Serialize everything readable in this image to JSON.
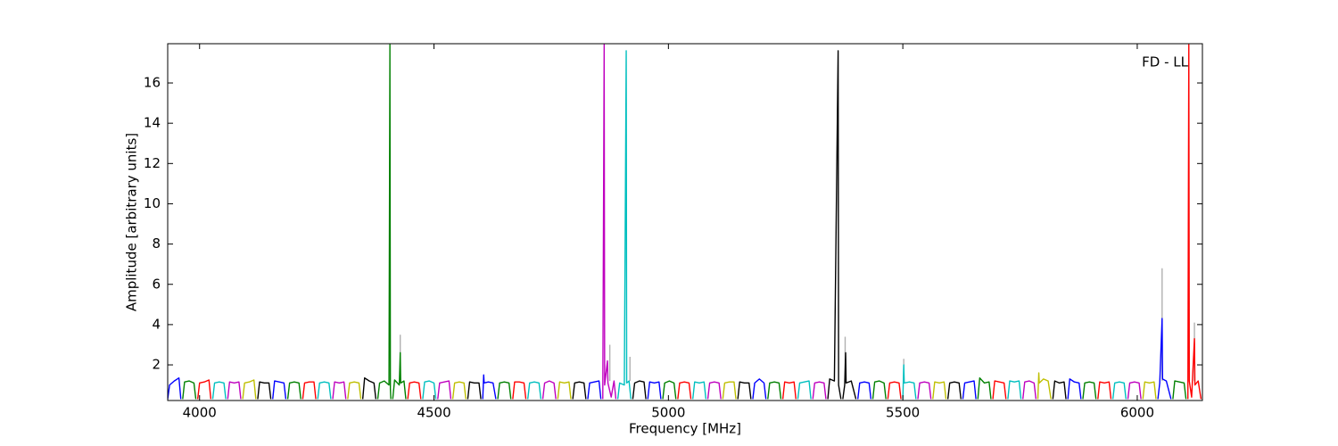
{
  "chart_data": {
    "type": "line",
    "annotation": "FD - LL",
    "xlabel": "Frequency [MHz]",
    "ylabel": "Amplitude [arbitrary units]",
    "xlim": [
      3932,
      6139
    ],
    "ylim": [
      0.23,
      17.95
    ],
    "xticks": [
      4000,
      4500,
      5000,
      5500,
      6000
    ],
    "yticks": [
      2,
      4,
      6,
      8,
      10,
      12,
      14,
      16
    ],
    "series": [
      {
        "color": "#0000ff",
        "x": [
          3932,
          3936,
          3946,
          3956,
          3960
        ],
        "values": [
          0.3,
          1.0,
          1.2,
          1.35,
          0.3
        ]
      },
      {
        "color": "#008000",
        "x": [
          3964,
          3968,
          3978,
          3988,
          3992
        ],
        "values": [
          0.3,
          1.15,
          1.2,
          1.1,
          0.3
        ]
      },
      {
        "color": "#ff0000",
        "x": [
          3996,
          4000,
          4010,
          4020,
          4024
        ],
        "values": [
          0.3,
          1.1,
          1.15,
          1.25,
          0.3
        ]
      },
      {
        "color": "#00bfbf",
        "x": [
          4028,
          4032,
          4042,
          4052,
          4056
        ],
        "values": [
          0.3,
          1.1,
          1.15,
          1.1,
          0.3
        ]
      },
      {
        "color": "#bf00bf",
        "x": [
          4060,
          4064,
          4074,
          4084,
          4088
        ],
        "values": [
          0.3,
          1.15,
          1.1,
          1.15,
          0.3
        ]
      },
      {
        "color": "#bfbf00",
        "x": [
          4092,
          4096,
          4106,
          4116,
          4120
        ],
        "values": [
          0.3,
          1.1,
          1.15,
          1.25,
          0.3
        ]
      },
      {
        "color": "#000000",
        "x": [
          4124,
          4128,
          4138,
          4148,
          4152
        ],
        "values": [
          0.3,
          1.15,
          1.1,
          1.1,
          0.3
        ]
      },
      {
        "color": "#0000ff",
        "x": [
          4156,
          4160,
          4170,
          4180,
          4184
        ],
        "values": [
          0.3,
          1.2,
          1.15,
          1.1,
          0.3
        ]
      },
      {
        "color": "#008000",
        "x": [
          4188,
          4192,
          4202,
          4212,
          4216
        ],
        "values": [
          0.3,
          1.1,
          1.15,
          1.1,
          0.3
        ]
      },
      {
        "color": "#ff0000",
        "x": [
          4220,
          4224,
          4234,
          4244,
          4248
        ],
        "values": [
          0.3,
          1.1,
          1.15,
          1.15,
          0.3
        ]
      },
      {
        "color": "#00bfbf",
        "x": [
          4252,
          4256,
          4266,
          4276,
          4280
        ],
        "values": [
          0.3,
          1.1,
          1.15,
          1.1,
          0.3
        ]
      },
      {
        "color": "#bf00bf",
        "x": [
          4284,
          4288,
          4298,
          4308,
          4312
        ],
        "values": [
          0.3,
          1.15,
          1.1,
          1.15,
          0.3
        ]
      },
      {
        "color": "#bfbf00",
        "x": [
          4316,
          4320,
          4330,
          4340,
          4344
        ],
        "values": [
          0.3,
          1.1,
          1.15,
          1.1,
          0.3
        ]
      },
      {
        "color": "#000000",
        "x": [
          4348,
          4352,
          4362,
          4372,
          4376
        ],
        "values": [
          0.3,
          1.35,
          1.2,
          1.1,
          0.3
        ]
      },
      {
        "color": "#008000",
        "x": [
          4380,
          4384,
          4394,
          4404,
          4406,
          4407,
          4408
        ],
        "values": [
          0.3,
          1.1,
          1.2,
          1.0,
          17.9,
          0.8,
          0.3
        ]
      },
      {
        "color": "#008000",
        "x": [
          4412,
          4416,
          4426,
          4428,
          4429,
          4436,
          4440
        ],
        "values": [
          0.3,
          1.25,
          1.0,
          2.6,
          1.1,
          1.2,
          0.3
        ]
      },
      {
        "color": "#ff0000",
        "x": [
          4444,
          4448,
          4458,
          4468,
          4472
        ],
        "values": [
          0.3,
          1.1,
          1.15,
          1.1,
          0.3
        ]
      },
      {
        "color": "#00bfbf",
        "x": [
          4476,
          4480,
          4490,
          4500,
          4504
        ],
        "values": [
          0.3,
          1.15,
          1.2,
          1.1,
          0.3
        ]
      },
      {
        "color": "#bf00bf",
        "x": [
          4508,
          4512,
          4522,
          4532,
          4536
        ],
        "values": [
          0.3,
          1.1,
          1.15,
          1.2,
          0.3
        ]
      },
      {
        "color": "#bfbf00",
        "x": [
          4540,
          4544,
          4554,
          4564,
          4568
        ],
        "values": [
          0.3,
          1.1,
          1.15,
          1.1,
          0.3
        ]
      },
      {
        "color": "#000000",
        "x": [
          4572,
          4576,
          4586,
          4596,
          4600
        ],
        "values": [
          0.3,
          1.15,
          1.1,
          1.1,
          0.3
        ]
      },
      {
        "color": "#0000ff",
        "x": [
          4604,
          4606,
          4607,
          4616,
          4626,
          4632
        ],
        "values": [
          0.3,
          1.5,
          1.1,
          1.15,
          1.1,
          0.3
        ]
      },
      {
        "color": "#008000",
        "x": [
          4636,
          4640,
          4650,
          4660,
          4664
        ],
        "values": [
          0.3,
          1.1,
          1.15,
          1.1,
          0.3
        ]
      },
      {
        "color": "#ff0000",
        "x": [
          4668,
          4672,
          4682,
          4692,
          4696
        ],
        "values": [
          0.3,
          1.15,
          1.15,
          1.1,
          0.3
        ]
      },
      {
        "color": "#00bfbf",
        "x": [
          4700,
          4704,
          4714,
          4724,
          4728
        ],
        "values": [
          0.3,
          1.1,
          1.15,
          1.1,
          0.3
        ]
      },
      {
        "color": "#bf00bf",
        "x": [
          4732,
          4736,
          4746,
          4756,
          4760
        ],
        "values": [
          0.3,
          1.1,
          1.2,
          1.1,
          0.3
        ]
      },
      {
        "color": "#bfbf00",
        "x": [
          4764,
          4768,
          4778,
          4788,
          4792
        ],
        "values": [
          0.3,
          1.15,
          1.1,
          1.15,
          0.3
        ]
      },
      {
        "color": "#000000",
        "x": [
          4796,
          4800,
          4810,
          4820,
          4824
        ],
        "values": [
          0.3,
          1.1,
          1.15,
          1.1,
          0.3
        ]
      },
      {
        "color": "#0000ff",
        "x": [
          4828,
          4832,
          4842,
          4852,
          4856
        ],
        "values": [
          0.3,
          1.1,
          1.15,
          1.2,
          0.3
        ]
      },
      {
        "color": "#bf00bf",
        "x": [
          4860,
          4863,
          4864,
          4870,
          4871,
          4878,
          4884,
          4888
        ],
        "values": [
          0.3,
          17.9,
          1.0,
          2.2,
          1.1,
          0.4,
          1.2,
          0.3
        ]
      },
      {
        "color": "#00bfbf",
        "x": [
          4892,
          4896,
          4906,
          4910,
          4911,
          4916,
          4920
        ],
        "values": [
          0.3,
          1.1,
          1.0,
          17.6,
          1.1,
          1.2,
          0.3
        ]
      },
      {
        "color": "#000000",
        "x": [
          4924,
          4928,
          4938,
          4948,
          4952
        ],
        "values": [
          0.3,
          1.1,
          1.2,
          1.15,
          0.3
        ]
      },
      {
        "color": "#0000ff",
        "x": [
          4956,
          4960,
          4970,
          4980,
          4984
        ],
        "values": [
          0.3,
          1.15,
          1.1,
          1.15,
          0.3
        ]
      },
      {
        "color": "#008000",
        "x": [
          4988,
          4992,
          5002,
          5012,
          5016
        ],
        "values": [
          0.3,
          1.1,
          1.2,
          1.1,
          0.3
        ]
      },
      {
        "color": "#ff0000",
        "x": [
          5020,
          5024,
          5034,
          5044,
          5048
        ],
        "values": [
          0.3,
          1.1,
          1.15,
          1.1,
          0.3
        ]
      },
      {
        "color": "#00bfbf",
        "x": [
          5052,
          5056,
          5066,
          5076,
          5080
        ],
        "values": [
          0.3,
          1.15,
          1.1,
          1.15,
          0.3
        ]
      },
      {
        "color": "#bf00bf",
        "x": [
          5084,
          5088,
          5098,
          5108,
          5112
        ],
        "values": [
          0.3,
          1.1,
          1.15,
          1.1,
          0.3
        ]
      },
      {
        "color": "#bfbf00",
        "x": [
          5116,
          5120,
          5130,
          5140,
          5144
        ],
        "values": [
          0.3,
          1.1,
          1.15,
          1.15,
          0.3
        ]
      },
      {
        "color": "#000000",
        "x": [
          5148,
          5152,
          5162,
          5172,
          5176
        ],
        "values": [
          0.3,
          1.15,
          1.1,
          1.1,
          0.3
        ]
      },
      {
        "color": "#0000ff",
        "x": [
          5180,
          5184,
          5194,
          5204,
          5208
        ],
        "values": [
          0.3,
          1.1,
          1.3,
          1.1,
          0.3
        ]
      },
      {
        "color": "#008000",
        "x": [
          5212,
          5216,
          5226,
          5236,
          5240
        ],
        "values": [
          0.3,
          1.1,
          1.15,
          1.1,
          0.3
        ]
      },
      {
        "color": "#ff0000",
        "x": [
          5244,
          5248,
          5258,
          5268,
          5272
        ],
        "values": [
          0.3,
          1.15,
          1.1,
          1.15,
          0.3
        ]
      },
      {
        "color": "#00bfbf",
        "x": [
          5276,
          5280,
          5290,
          5300,
          5304
        ],
        "values": [
          0.3,
          1.1,
          1.15,
          1.2,
          0.3
        ]
      },
      {
        "color": "#bf00bf",
        "x": [
          5308,
          5312,
          5322,
          5332,
          5336
        ],
        "values": [
          0.3,
          1.1,
          1.15,
          1.1,
          0.3
        ]
      },
      {
        "color": "#000000",
        "x": [
          5340,
          5344,
          5354,
          5362,
          5363,
          5368
        ],
        "values": [
          0.3,
          1.3,
          1.2,
          17.6,
          1.0,
          0.3
        ]
      },
      {
        "color": "#000000",
        "x": [
          5372,
          5376,
          5378,
          5379,
          5390,
          5400
        ],
        "values": [
          0.3,
          1.0,
          2.6,
          1.1,
          1.2,
          0.3
        ]
      },
      {
        "color": "#0000ff",
        "x": [
          5404,
          5408,
          5418,
          5428,
          5432
        ],
        "values": [
          0.3,
          1.1,
          1.15,
          1.1,
          0.3
        ]
      },
      {
        "color": "#008000",
        "x": [
          5436,
          5440,
          5450,
          5460,
          5464
        ],
        "values": [
          0.3,
          1.15,
          1.2,
          1.1,
          0.3
        ]
      },
      {
        "color": "#ff0000",
        "x": [
          5468,
          5472,
          5482,
          5492,
          5496
        ],
        "values": [
          0.3,
          1.1,
          1.15,
          1.1,
          0.3
        ]
      },
      {
        "color": "#00bfbf",
        "x": [
          5500,
          5502,
          5503,
          5514,
          5524,
          5528
        ],
        "values": [
          0.3,
          2.0,
          1.1,
          1.15,
          1.1,
          0.3
        ]
      },
      {
        "color": "#bf00bf",
        "x": [
          5532,
          5536,
          5546,
          5556,
          5560
        ],
        "values": [
          0.3,
          1.1,
          1.15,
          1.1,
          0.3
        ]
      },
      {
        "color": "#bfbf00",
        "x": [
          5564,
          5568,
          5578,
          5588,
          5592
        ],
        "values": [
          0.3,
          1.15,
          1.1,
          1.15,
          0.3
        ]
      },
      {
        "color": "#000000",
        "x": [
          5596,
          5600,
          5610,
          5620,
          5624
        ],
        "values": [
          0.3,
          1.1,
          1.15,
          1.1,
          0.3
        ]
      },
      {
        "color": "#0000ff",
        "x": [
          5628,
          5632,
          5642,
          5652,
          5656
        ],
        "values": [
          0.3,
          1.1,
          1.15,
          1.2,
          0.3
        ]
      },
      {
        "color": "#008000",
        "x": [
          5660,
          5664,
          5674,
          5684,
          5688
        ],
        "values": [
          0.3,
          1.35,
          1.1,
          1.15,
          0.3
        ]
      },
      {
        "color": "#ff0000",
        "x": [
          5692,
          5696,
          5706,
          5716,
          5720
        ],
        "values": [
          0.3,
          1.2,
          1.15,
          1.1,
          0.3
        ]
      },
      {
        "color": "#00bfbf",
        "x": [
          5724,
          5728,
          5738,
          5748,
          5752
        ],
        "values": [
          0.3,
          1.2,
          1.15,
          1.2,
          0.3
        ]
      },
      {
        "color": "#bf00bf",
        "x": [
          5756,
          5760,
          5770,
          5780,
          5784
        ],
        "values": [
          0.3,
          1.15,
          1.2,
          1.1,
          0.3
        ]
      },
      {
        "color": "#bfbf00",
        "x": [
          5788,
          5790,
          5791,
          5800,
          5810,
          5816
        ],
        "values": [
          0.3,
          1.6,
          1.1,
          1.3,
          1.2,
          0.3
        ]
      },
      {
        "color": "#000000",
        "x": [
          5820,
          5824,
          5834,
          5844,
          5848
        ],
        "values": [
          0.3,
          1.2,
          1.1,
          1.15,
          0.3
        ]
      },
      {
        "color": "#0000ff",
        "x": [
          5852,
          5856,
          5866,
          5876,
          5880
        ],
        "values": [
          0.3,
          1.3,
          1.15,
          1.1,
          0.3
        ]
      },
      {
        "color": "#008000",
        "x": [
          5884,
          5888,
          5898,
          5908,
          5912
        ],
        "values": [
          0.3,
          1.1,
          1.15,
          1.1,
          0.3
        ]
      },
      {
        "color": "#ff0000",
        "x": [
          5916,
          5920,
          5930,
          5940,
          5944
        ],
        "values": [
          0.3,
          1.15,
          1.1,
          1.15,
          0.3
        ]
      },
      {
        "color": "#00bfbf",
        "x": [
          5948,
          5952,
          5962,
          5972,
          5976
        ],
        "values": [
          0.3,
          1.1,
          1.15,
          1.1,
          0.3
        ]
      },
      {
        "color": "#bf00bf",
        "x": [
          5980,
          5984,
          5994,
          6004,
          6008
        ],
        "values": [
          0.3,
          1.1,
          1.15,
          1.1,
          0.3
        ]
      },
      {
        "color": "#bfbf00",
        "x": [
          6012,
          6016,
          6026,
          6036,
          6040
        ],
        "values": [
          0.3,
          1.15,
          1.1,
          1.15,
          0.3
        ]
      },
      {
        "color": "#0000ff",
        "x": [
          6044,
          6048,
          6053,
          6054,
          6062,
          6072
        ],
        "values": [
          0.3,
          1.1,
          4.3,
          1.3,
          1.2,
          0.3
        ]
      },
      {
        "color": "#008000",
        "x": [
          6076,
          6080,
          6090,
          6100,
          6104
        ],
        "values": [
          0.3,
          1.2,
          1.15,
          1.1,
          0.3
        ]
      },
      {
        "color": "#ff0000",
        "x": [
          6108,
          6110,
          6111,
          6116,
          6122,
          6123,
          6130,
          6136
        ],
        "values": [
          0.3,
          17.9,
          1.2,
          0.4,
          3.3,
          1.0,
          1.2,
          0.3
        ]
      },
      {
        "color": "#b0b0b0",
        "x": [
          4428,
          4428,
          4428,
          4875,
          4875,
          4875,
          4918,
          4918,
          4918,
          5377,
          5377,
          5377,
          5502,
          5502,
          5502,
          6053,
          6053,
          6053,
          6122,
          6122
        ],
        "values": [
          1.2,
          3.5,
          null,
          1.2,
          3.0,
          null,
          1.2,
          2.4,
          null,
          1.2,
          3.4,
          null,
          1.1,
          2.3,
          null,
          1.2,
          6.8,
          null,
          1.2,
          4.1
        ]
      }
    ]
  }
}
